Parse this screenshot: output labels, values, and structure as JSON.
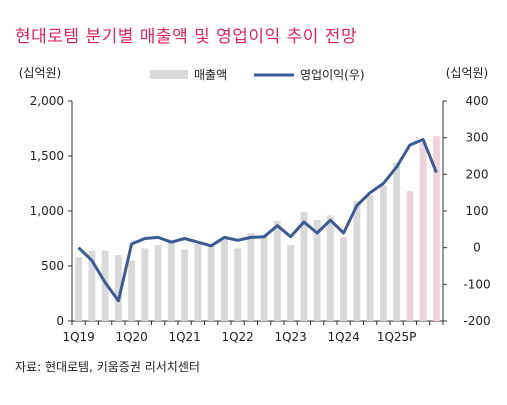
{
  "title": "현대로템 분기별 매출액 및 영업이익 추이 전망",
  "source": "자료: 현대로템, 키움증권 리서치센터",
  "chart_data": {
    "type": "bar+line",
    "unit_left": "(십억원)",
    "unit_right": "(십억원)",
    "legend": {
      "bar": "매출액",
      "line": "영업이익(우)"
    },
    "x_tick_labels": [
      "1Q19",
      "1Q20",
      "1Q21",
      "1Q22",
      "1Q23",
      "1Q24",
      "1Q25P"
    ],
    "left_axis": {
      "min": 0,
      "max": 2000,
      "ticks": [
        0,
        500,
        1000,
        1500,
        2000
      ],
      "tick_labels": [
        "0",
        "500",
        "1,000",
        "1,500",
        "2,000"
      ]
    },
    "right_axis": {
      "min": -200,
      "max": 400,
      "ticks": [
        -200,
        -100,
        0,
        100,
        200,
        300,
        400
      ],
      "tick_labels": [
        "-200",
        "-100",
        "0",
        "100",
        "200",
        "300",
        "400"
      ]
    },
    "periods": [
      "1Q19",
      "2Q19",
      "3Q19",
      "4Q19",
      "1Q20",
      "2Q20",
      "3Q20",
      "4Q20",
      "1Q21",
      "2Q21",
      "3Q21",
      "4Q21",
      "1Q22",
      "2Q22",
      "3Q22",
      "4Q22",
      "1Q23",
      "2Q23",
      "3Q23",
      "4Q23",
      "1Q24",
      "2Q24",
      "3Q24",
      "4Q24",
      "1Q25P",
      "2Q25P",
      "3Q25P",
      "4Q25P"
    ],
    "revenue": [
      580,
      640,
      640,
      600,
      550,
      660,
      690,
      740,
      650,
      700,
      700,
      760,
      660,
      800,
      780,
      910,
      690,
      990,
      920,
      960,
      760,
      1090,
      1140,
      1230,
      1440,
      1180,
      1620,
      1680
    ],
    "projected_from_index": 25,
    "operating_profit": [
      0,
      -35,
      -95,
      -145,
      10,
      25,
      28,
      15,
      25,
      15,
      5,
      28,
      20,
      28,
      30,
      60,
      30,
      70,
      40,
      75,
      40,
      115,
      150,
      175,
      220,
      280,
      295,
      205
    ],
    "colors": {
      "bar": "#d9d9d9",
      "bar_projected": "#ecd3dc",
      "line": "#3d5a94",
      "title": "#e0245e"
    }
  }
}
